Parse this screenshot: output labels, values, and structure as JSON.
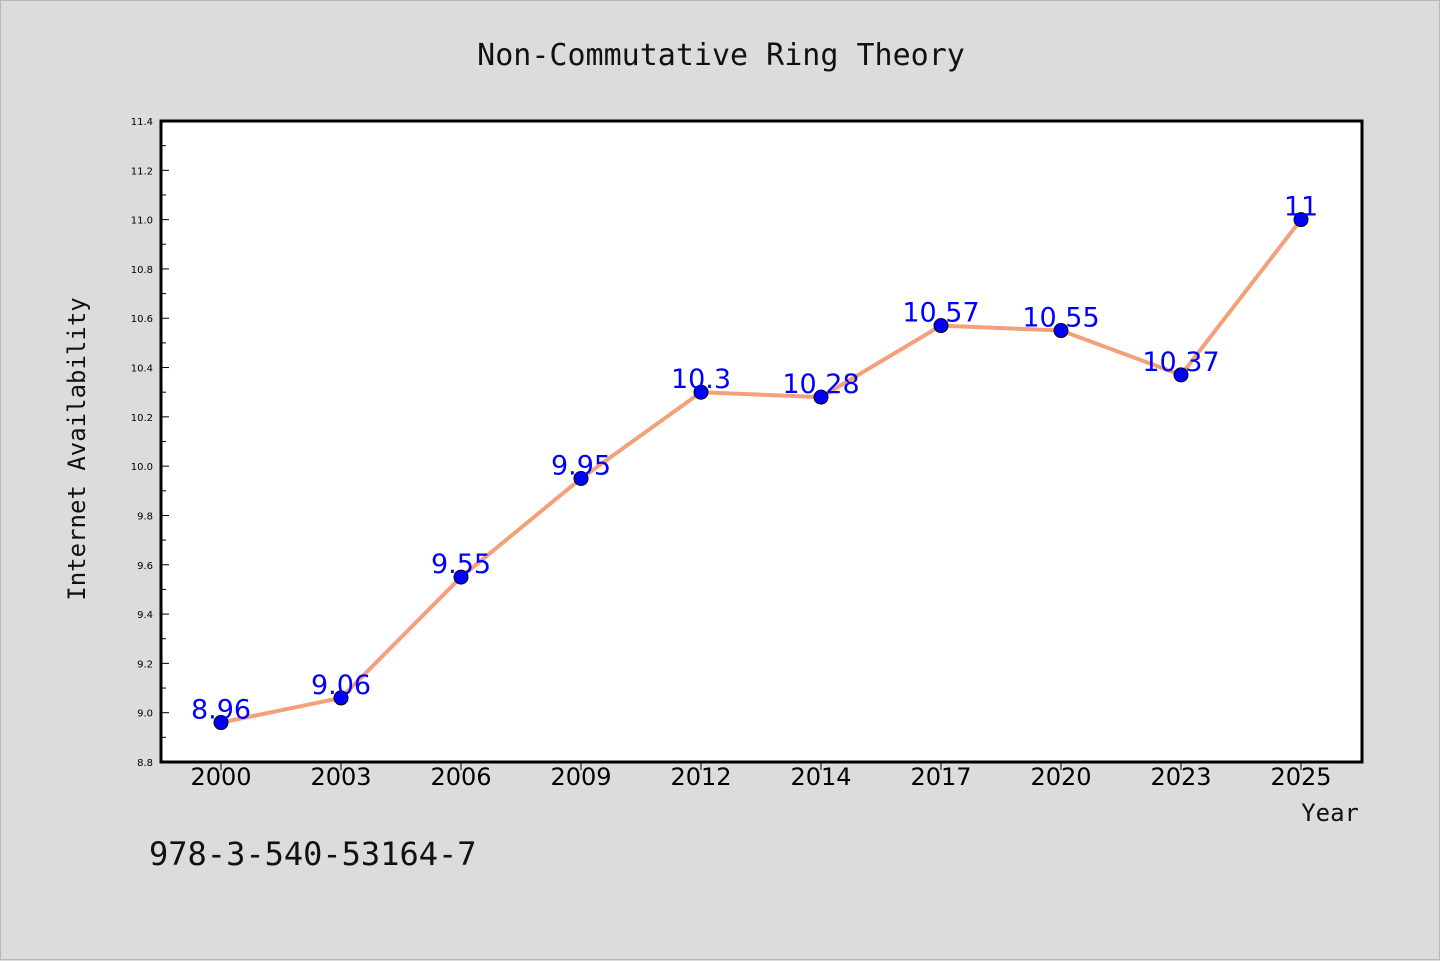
{
  "chart_data": {
    "type": "line",
    "title": "Non-Commutative Ring Theory",
    "xlabel": "Year",
    "ylabel": "Internet Availability",
    "categories": [
      "2000",
      "2003",
      "2006",
      "2009",
      "2012",
      "2014",
      "2017",
      "2020",
      "2023",
      "2025"
    ],
    "series": [
      {
        "values": [
          8.96,
          9.06,
          9.55,
          9.95,
          10.3,
          10.28,
          10.57,
          10.55,
          10.37,
          11
        ],
        "data_labels": [
          "8.96",
          "9.06",
          "9.55",
          "9.95",
          "10.3",
          "10.28",
          "10.57",
          "10.55",
          "10.37",
          "11"
        ],
        "line_color": "#f4a07a",
        "marker_color": "#0000ff"
      }
    ],
    "ylim": [
      8.8,
      11.4
    ],
    "yticks": [
      "8.8",
      "9.0",
      "9.2",
      "9.4",
      "9.6",
      "9.8",
      "10.0",
      "10.2",
      "10.4",
      "10.6",
      "10.8",
      "11.0",
      "11.2",
      "11.4"
    ],
    "grid": false,
    "legend": "none"
  },
  "footer_text": "978-3-540-53164-7",
  "colors": {
    "background": "#dcdcdc",
    "plot_background": "#ffffff",
    "line": "#f4a07a",
    "marker": "#0000ff",
    "data_label": "#0000ff"
  }
}
